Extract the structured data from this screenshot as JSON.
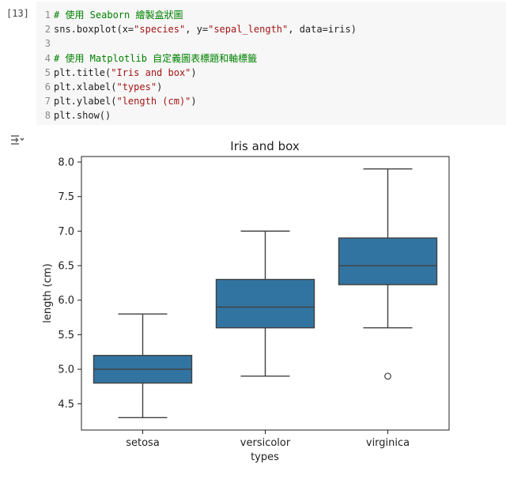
{
  "cell": {
    "execution_count": "[13]",
    "lines": [
      {
        "n": "1",
        "tokens": [
          {
            "t": "# 使用 Seaborn 繪製盒狀圖",
            "c": "cm"
          }
        ]
      },
      {
        "n": "2",
        "tokens": [
          {
            "t": "sns.boxplot(x=",
            "c": "pl"
          },
          {
            "t": "\"species\"",
            "c": "st"
          },
          {
            "t": ", y=",
            "c": "pl"
          },
          {
            "t": "\"sepal_length\"",
            "c": "st"
          },
          {
            "t": ", data=iris)",
            "c": "pl"
          }
        ]
      },
      {
        "n": "3",
        "tokens": []
      },
      {
        "n": "4",
        "tokens": [
          {
            "t": "# 使用 Matplotlib 自定義圖表標題和軸標籤",
            "c": "cm"
          }
        ]
      },
      {
        "n": "5",
        "tokens": [
          {
            "t": "plt.title(",
            "c": "pl"
          },
          {
            "t": "\"Iris and box\"",
            "c": "st"
          },
          {
            "t": ")",
            "c": "pl"
          }
        ]
      },
      {
        "n": "6",
        "tokens": [
          {
            "t": "plt.xlabel(",
            "c": "pl"
          },
          {
            "t": "\"types\"",
            "c": "st"
          },
          {
            "t": ")",
            "c": "pl"
          }
        ]
      },
      {
        "n": "7",
        "tokens": [
          {
            "t": "plt.ylabel(",
            "c": "pl"
          },
          {
            "t": "\"length (cm)\"",
            "c": "st"
          },
          {
            "t": ")",
            "c": "pl"
          }
        ]
      },
      {
        "n": "8",
        "tokens": [
          {
            "t": "plt.show()",
            "c": "pl"
          }
        ]
      }
    ]
  },
  "output_icon": "output-toggle-icon",
  "colors": {
    "box_fill": "#3274a1",
    "box_edge": "#404040"
  },
  "chart_data": {
    "type": "box",
    "title": "Iris and box",
    "xlabel": "types",
    "ylabel": "length (cm)",
    "categories": [
      "setosa",
      "versicolor",
      "virginica"
    ],
    "boxes": [
      {
        "name": "setosa",
        "whisker_low": 4.3,
        "q1": 4.8,
        "median": 5.0,
        "q3": 5.2,
        "whisker_high": 5.8,
        "outliers": []
      },
      {
        "name": "versicolor",
        "whisker_low": 4.9,
        "q1": 5.6,
        "median": 5.9,
        "q3": 6.3,
        "whisker_high": 7.0,
        "outliers": []
      },
      {
        "name": "virginica",
        "whisker_low": 5.6,
        "q1": 6.225,
        "median": 6.5,
        "q3": 6.9,
        "whisker_high": 7.9,
        "outliers": [
          4.9
        ]
      }
    ],
    "yticks": [
      4.5,
      5.0,
      5.5,
      6.0,
      6.5,
      7.0,
      7.5,
      8.0
    ],
    "ytick_labels": [
      "4.5",
      "5.0",
      "5.5",
      "6.0",
      "6.5",
      "7.0",
      "7.5",
      "8.0"
    ],
    "ylim": [
      4.12,
      8.08
    ],
    "grid": false
  }
}
